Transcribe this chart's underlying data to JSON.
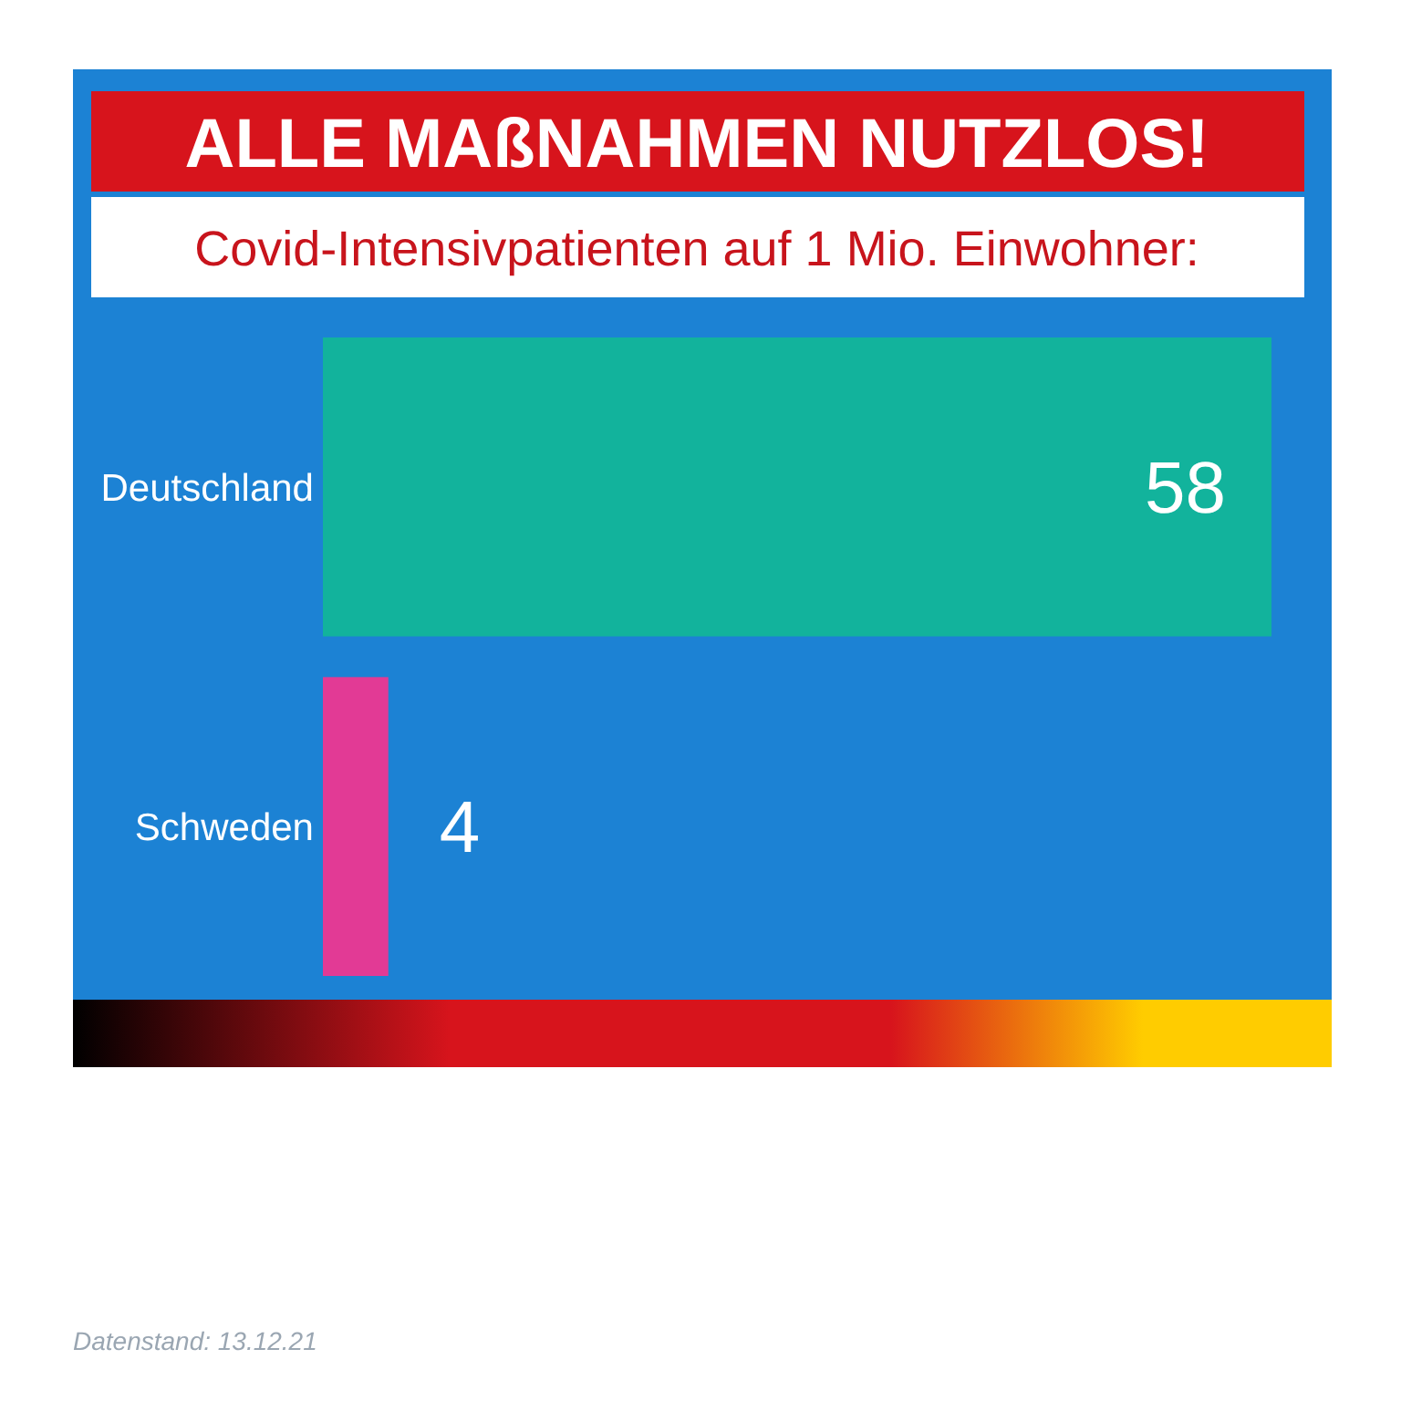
{
  "chart_data": {
    "type": "bar",
    "orientation": "horizontal",
    "title": "ALLE MAßNAHMEN NUTZLOS!",
    "subtitle": "Covid-Intensivpatienten auf 1 Mio. Einwohner:",
    "categories": [
      "Deutschland",
      "Schweden"
    ],
    "values": [
      58,
      4
    ],
    "colors": [
      "#12b39c",
      "#e23a95"
    ],
    "data_labels": true,
    "annotations": [
      "Datenstand: 13.12.21"
    ]
  }
}
